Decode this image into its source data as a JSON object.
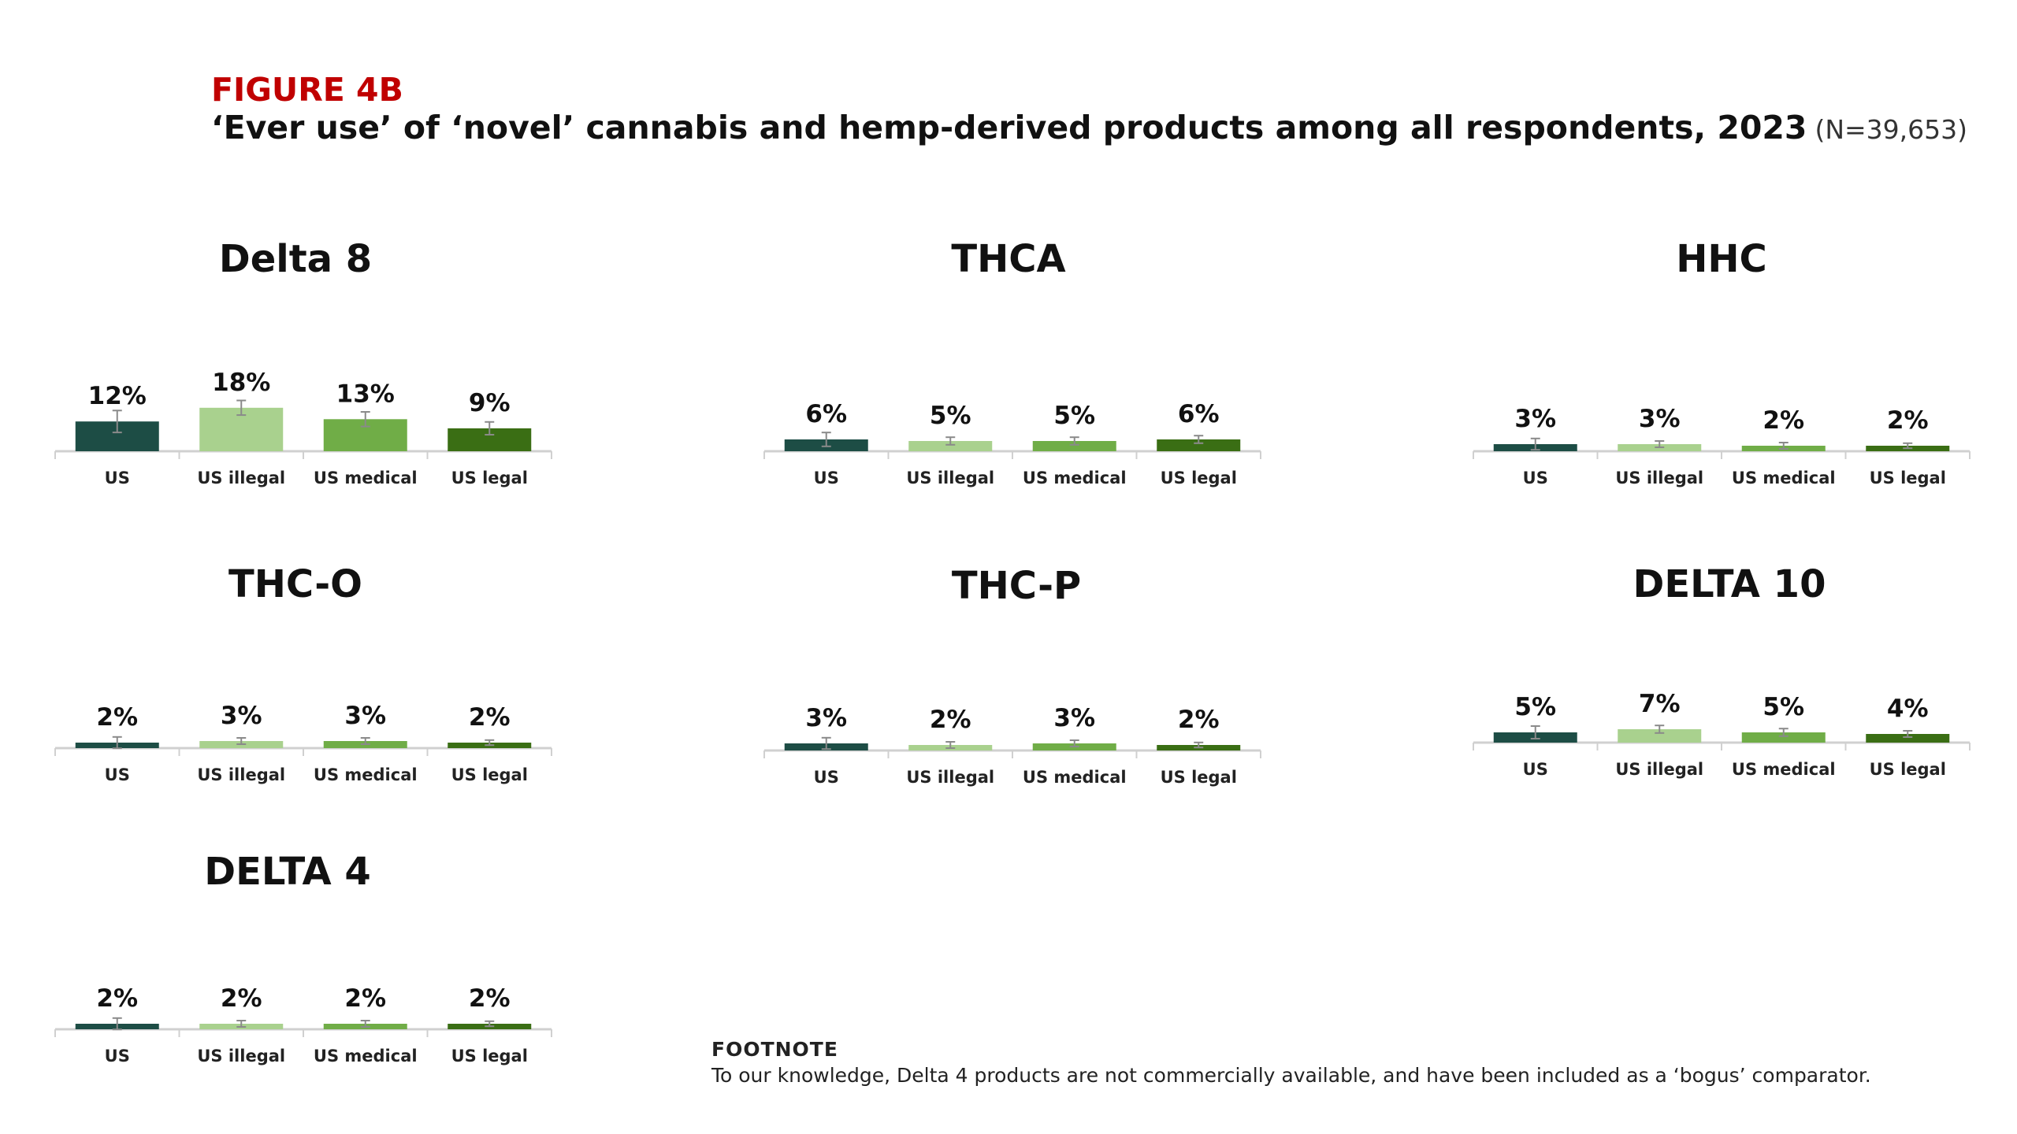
{
  "header": {
    "figure_label": "FIGURE 4B",
    "title": "‘Ever use’ of ‘novel’ cannabis and hemp-derived products among all respondents, 2023",
    "sample_size": "(N=39,653)"
  },
  "colors": [
    "#1d4d45",
    "#a9d18e",
    "#70ad47",
    "#3a6e14"
  ],
  "chart_data": [
    {
      "type": "bar",
      "title": "Delta 8",
      "categories": [
        "US",
        "US illegal",
        "US medical",
        "US legal"
      ],
      "values": [
        12,
        18,
        13,
        9
      ],
      "labels": [
        "12%",
        "18%",
        "13%",
        "9%"
      ],
      "error": [
        1.2,
        0.8,
        0.8,
        0.7
      ]
    },
    {
      "type": "bar",
      "title": "THCA",
      "categories": [
        "US",
        "US illegal",
        "US medical",
        "US legal"
      ],
      "values": [
        6,
        5,
        5,
        6
      ],
      "labels": [
        "6%",
        "5%",
        "5%",
        "6%"
      ],
      "error": [
        1.1,
        0.6,
        0.6,
        0.6
      ]
    },
    {
      "type": "bar",
      "title": "HHC",
      "categories": [
        "US",
        "US illegal",
        "US medical",
        "US legal"
      ],
      "values": [
        3,
        3,
        2,
        2
      ],
      "labels": [
        "3%",
        "3%",
        "2%",
        "2%"
      ],
      "error": [
        0.9,
        0.5,
        0.5,
        0.4
      ]
    },
    {
      "type": "bar",
      "title": "THC-O",
      "categories": [
        "US",
        "US illegal",
        "US medical",
        "US legal"
      ],
      "values": [
        2,
        3,
        3,
        2
      ],
      "labels": [
        "2%",
        "3%",
        "3%",
        "2%"
      ],
      "error": [
        0.9,
        0.5,
        0.5,
        0.4
      ]
    },
    {
      "type": "bar",
      "title": "THC-P",
      "categories": [
        "US",
        "US illegal",
        "US medical",
        "US legal"
      ],
      "values": [
        3,
        2,
        3,
        2
      ],
      "labels": [
        "3%",
        "2%",
        "3%",
        "2%"
      ],
      "error": [
        0.9,
        0.5,
        0.5,
        0.4
      ]
    },
    {
      "type": "bar",
      "title": "DELTA 10",
      "categories": [
        "US",
        "US illegal",
        "US medical",
        "US legal"
      ],
      "values": [
        5,
        7,
        5,
        4
      ],
      "labels": [
        "5%",
        "7%",
        "5%",
        "4%"
      ],
      "error": [
        1.0,
        0.6,
        0.6,
        0.5
      ]
    },
    {
      "type": "bar",
      "title": "DELTA 4",
      "categories": [
        "US",
        "US illegal",
        "US medical",
        "US legal"
      ],
      "values": [
        2,
        2,
        2,
        2
      ],
      "labels": [
        "2%",
        "2%",
        "2%",
        "2%"
      ],
      "error": [
        0.9,
        0.5,
        0.5,
        0.4
      ]
    }
  ],
  "footnote": {
    "heading": "FOOTNOTE",
    "text": "To our knowledge, Delta 4 products are not commercially available, and have been included as a ‘bogus’ comparator."
  }
}
